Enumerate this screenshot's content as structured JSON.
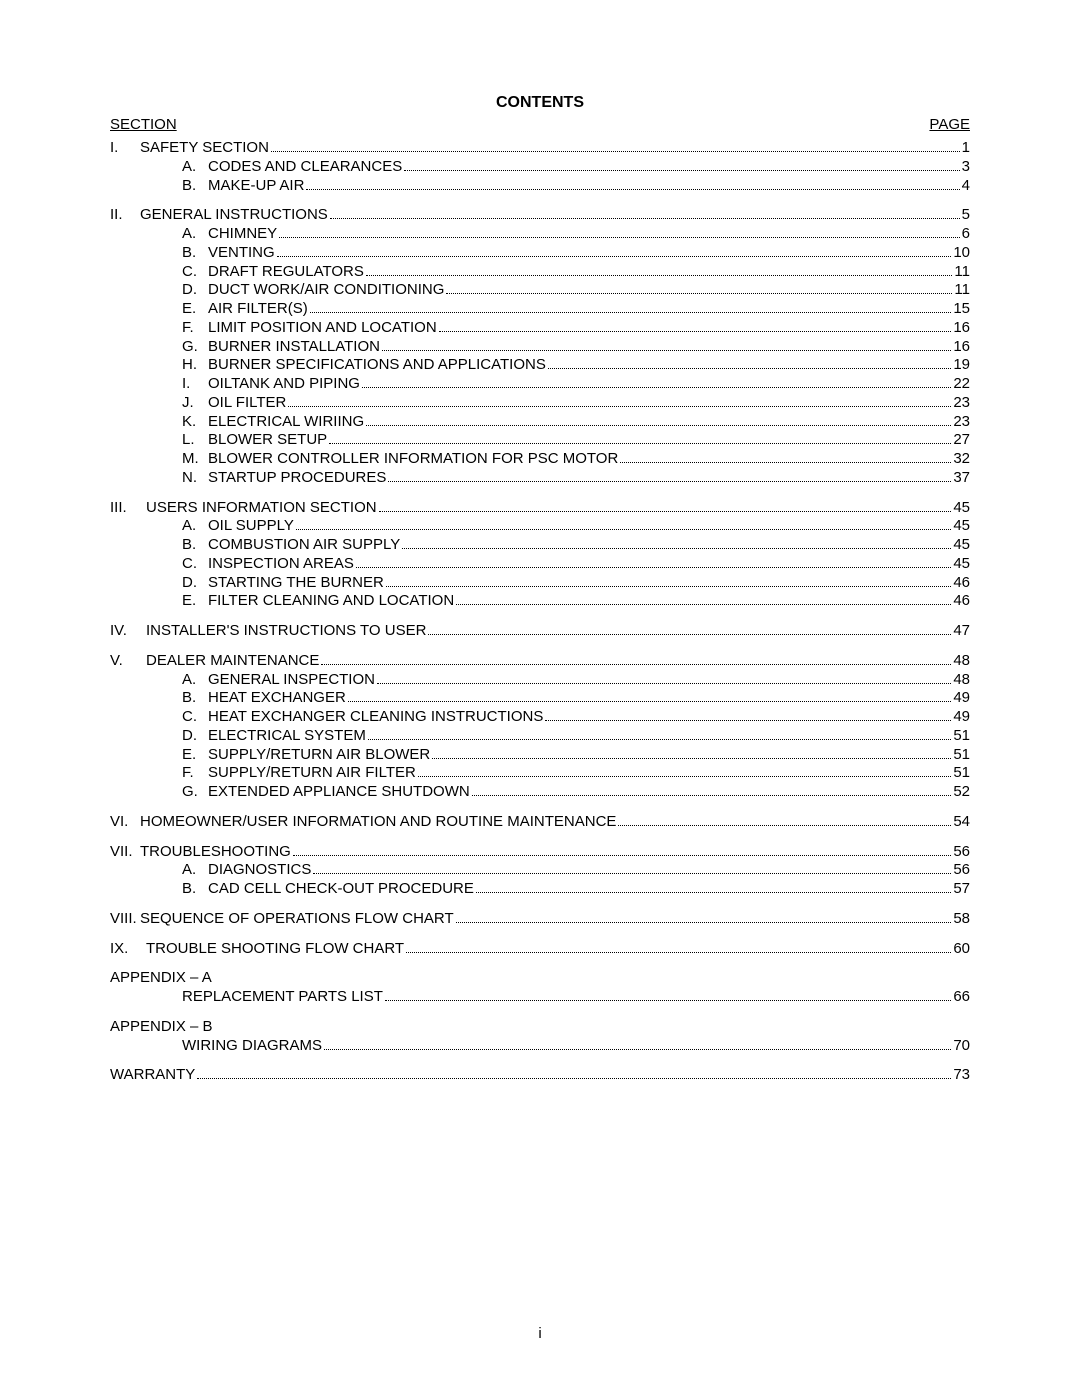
{
  "title": "CONTENTS",
  "header_left": "SECTION",
  "header_right": "PAGE",
  "page_number": "i",
  "toc": [
    {
      "type": "line",
      "level": 1,
      "num": "I.",
      "label": "SAFETY SECTION",
      "page": "1"
    },
    {
      "type": "line",
      "level": 2,
      "num": "A.",
      "label": "CODES AND CLEARANCES",
      "page": "3"
    },
    {
      "type": "line",
      "level": 2,
      "num": "B.",
      "label": "MAKE-UP AIR",
      "page": "4"
    },
    {
      "type": "gap"
    },
    {
      "type": "line",
      "level": 1,
      "num": "II.",
      "label": "GENERAL INSTRUCTIONS",
      "page": "5"
    },
    {
      "type": "line",
      "level": 2,
      "num": "A.",
      "label": "CHIMNEY",
      "page": "6"
    },
    {
      "type": "line",
      "level": 2,
      "num": "B.",
      "label": "VENTING",
      "page": "10"
    },
    {
      "type": "line",
      "level": 2,
      "num": "C.",
      "label": "DRAFT REGULATORS",
      "page": "11"
    },
    {
      "type": "line",
      "level": 2,
      "num": "D.",
      "label": "DUCT WORK/AIR CONDITIONING",
      "page": "11"
    },
    {
      "type": "line",
      "level": 2,
      "num": "E.",
      "label": "AIR FILTER(S)",
      "page": "15"
    },
    {
      "type": "line",
      "level": 2,
      "num": "F.",
      "label": "LIMIT POSITION AND LOCATION",
      "page": "16"
    },
    {
      "type": "line",
      "level": 2,
      "num": "G.",
      "label": "BURNER INSTALLATION",
      "page": "16"
    },
    {
      "type": "line",
      "level": 2,
      "num": "H.",
      "label": "BURNER SPECIFICATIONS AND APPLICATIONS",
      "page": "19"
    },
    {
      "type": "line",
      "level": 2,
      "num": "I.",
      "label": "OILTANK AND PIPING",
      "page": "22"
    },
    {
      "type": "line",
      "level": 2,
      "num": "J.",
      "label": "OIL FILTER",
      "page": "23"
    },
    {
      "type": "line",
      "level": 2,
      "num": "K.",
      "label": "ELECTRICAL WIRIING",
      "page": "23"
    },
    {
      "type": "line",
      "level": 2,
      "num": "L.",
      "label": "BLOWER SETUP",
      "page": "27"
    },
    {
      "type": "line",
      "level": 2,
      "num": "M.",
      "label": "BLOWER CONTROLLER INFORMATION FOR PSC MOTOR",
      "page": "32"
    },
    {
      "type": "line",
      "level": 2,
      "num": "N.",
      "label": "STARTUP PROCEDURES",
      "page": "37"
    },
    {
      "type": "gap"
    },
    {
      "type": "line",
      "level": 1,
      "num": "III.",
      "num_wide": true,
      "label": "USERS INFORMATION SECTION",
      "page": "45"
    },
    {
      "type": "line",
      "level": 2,
      "num": "A.",
      "label": "OIL SUPPLY",
      "page": "45"
    },
    {
      "type": "line",
      "level": 2,
      "num": "B.",
      "label": "COMBUSTION AIR SUPPLY",
      "page": "45"
    },
    {
      "type": "line",
      "level": 2,
      "num": "C.",
      "label": "INSPECTION AREAS",
      "page": "45"
    },
    {
      "type": "line",
      "level": 2,
      "num": "D.",
      "label": "STARTING THE BURNER",
      "page": "46"
    },
    {
      "type": "line",
      "level": 2,
      "num": "E.",
      "label": "FILTER CLEANING AND LOCATION",
      "page": "46"
    },
    {
      "type": "gap"
    },
    {
      "type": "line",
      "level": 1,
      "num": "IV.",
      "num_wide": true,
      "label": "INSTALLER'S INSTRUCTIONS TO USER",
      "page": "47"
    },
    {
      "type": "gap"
    },
    {
      "type": "line",
      "level": 1,
      "num": "V.",
      "num_wide": true,
      "label": "DEALER MAINTENANCE",
      "page": "48"
    },
    {
      "type": "line",
      "level": 2,
      "num": "A.",
      "label": "GENERAL INSPECTION",
      "page": "48"
    },
    {
      "type": "line",
      "level": 2,
      "num": "B.",
      "label": "HEAT EXCHANGER",
      "page": "49"
    },
    {
      "type": "line",
      "level": 2,
      "num": "C.",
      "label": "HEAT EXCHANGER CLEANING INSTRUCTIONS",
      "page": "49"
    },
    {
      "type": "line",
      "level": 2,
      "num": "D.",
      "label": "ELECTRICAL SYSTEM",
      "page": "51"
    },
    {
      "type": "line",
      "level": 2,
      "num": "E.",
      "label": "SUPPLY/RETURN AIR BLOWER",
      "page": "51"
    },
    {
      "type": "line",
      "level": 2,
      "num": "F.",
      "label": "SUPPLY/RETURN AIR FILTER",
      "page": "51"
    },
    {
      "type": "line",
      "level": 2,
      "num": "G.",
      "label": "EXTENDED APPLIANCE SHUTDOWN",
      "page": "52"
    },
    {
      "type": "gap"
    },
    {
      "type": "line",
      "level": 1,
      "num": "VI.",
      "label": "HOMEOWNER/USER INFORMATION AND ROUTINE MAINTENANCE",
      "page": "54"
    },
    {
      "type": "gap"
    },
    {
      "type": "line",
      "level": 1,
      "num": "VII.",
      "label": "TROUBLESHOOTING",
      "page": "56"
    },
    {
      "type": "line",
      "level": 2,
      "num": "A.",
      "label": "DIAGNOSTICS",
      "page": "56"
    },
    {
      "type": "line",
      "level": 2,
      "num": "B.",
      "label": "CAD CELL CHECK-OUT PROCEDURE",
      "page": "57"
    },
    {
      "type": "gap"
    },
    {
      "type": "line",
      "level": 1,
      "num": "VIII.",
      "label": "SEQUENCE OF OPERATIONS FLOW CHART",
      "page": "58"
    },
    {
      "type": "gap"
    },
    {
      "type": "line",
      "level": 1,
      "num": "IX.",
      "num_wide": true,
      "label": "TROUBLE SHOOTING FLOW CHART",
      "page": "60"
    },
    {
      "type": "gap"
    },
    {
      "type": "plain",
      "level": 1,
      "label": "APPENDIX – A"
    },
    {
      "type": "line",
      "level": 2,
      "num": "",
      "label": "REPLACEMENT PARTS LIST",
      "page": "66"
    },
    {
      "type": "gap"
    },
    {
      "type": "plain",
      "level": 1,
      "label": "APPENDIX – B"
    },
    {
      "type": "line",
      "level": 2,
      "num": "",
      "label": "WIRING DIAGRAMS",
      "page": "70"
    },
    {
      "type": "gap"
    },
    {
      "type": "line",
      "level": 1,
      "num": "",
      "label": "WARRANTY",
      "page": "73"
    }
  ]
}
